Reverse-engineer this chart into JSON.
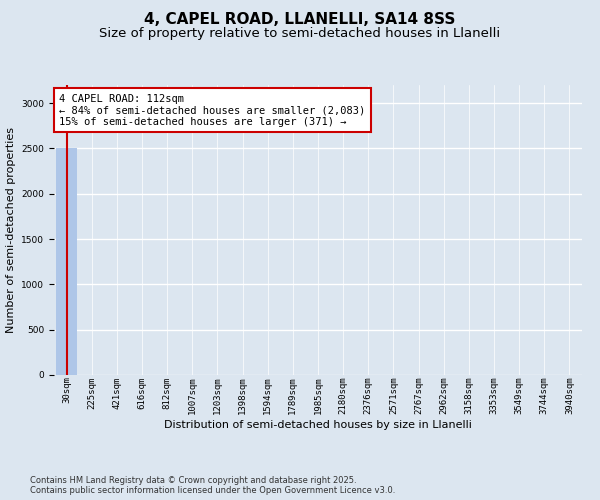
{
  "title1": "4, CAPEL ROAD, LLANELLI, SA14 8SS",
  "title2": "Size of property relative to semi-detached houses in Llanelli",
  "xlabel": "Distribution of semi-detached houses by size in Llanelli",
  "ylabel": "Number of semi-detached properties",
  "categories": [
    "30sqm",
    "225sqm",
    "421sqm",
    "616sqm",
    "812sqm",
    "1007sqm",
    "1203sqm",
    "1398sqm",
    "1594sqm",
    "1789sqm",
    "1985sqm",
    "2180sqm",
    "2376sqm",
    "2571sqm",
    "2767sqm",
    "2962sqm",
    "3158sqm",
    "3353sqm",
    "3549sqm",
    "3744sqm",
    "3940sqm"
  ],
  "values": [
    2500,
    2,
    1,
    1,
    1,
    0,
    0,
    0,
    0,
    0,
    0,
    0,
    0,
    0,
    0,
    0,
    0,
    0,
    0,
    0,
    0
  ],
  "bar_color": "#aec6e8",
  "annotation_text": "4 CAPEL ROAD: 112sqm\n← 84% of semi-detached houses are smaller (2,083)\n15% of semi-detached houses are larger (371) →",
  "annotation_box_color": "#ffffff",
  "annotation_box_edge": "#cc0000",
  "vline_color": "#cc0000",
  "vline_x": 0,
  "ylim": [
    0,
    3200
  ],
  "yticks": [
    0,
    500,
    1000,
    1500,
    2000,
    2500,
    3000
  ],
  "background_color": "#dce6f0",
  "plot_background": "#dce6f0",
  "grid_color": "#ffffff",
  "footer_text": "Contains HM Land Registry data © Crown copyright and database right 2025.\nContains public sector information licensed under the Open Government Licence v3.0.",
  "title_fontsize": 11,
  "subtitle_fontsize": 9.5,
  "axis_label_fontsize": 8,
  "tick_fontsize": 6.5,
  "annotation_fontsize": 7.5
}
